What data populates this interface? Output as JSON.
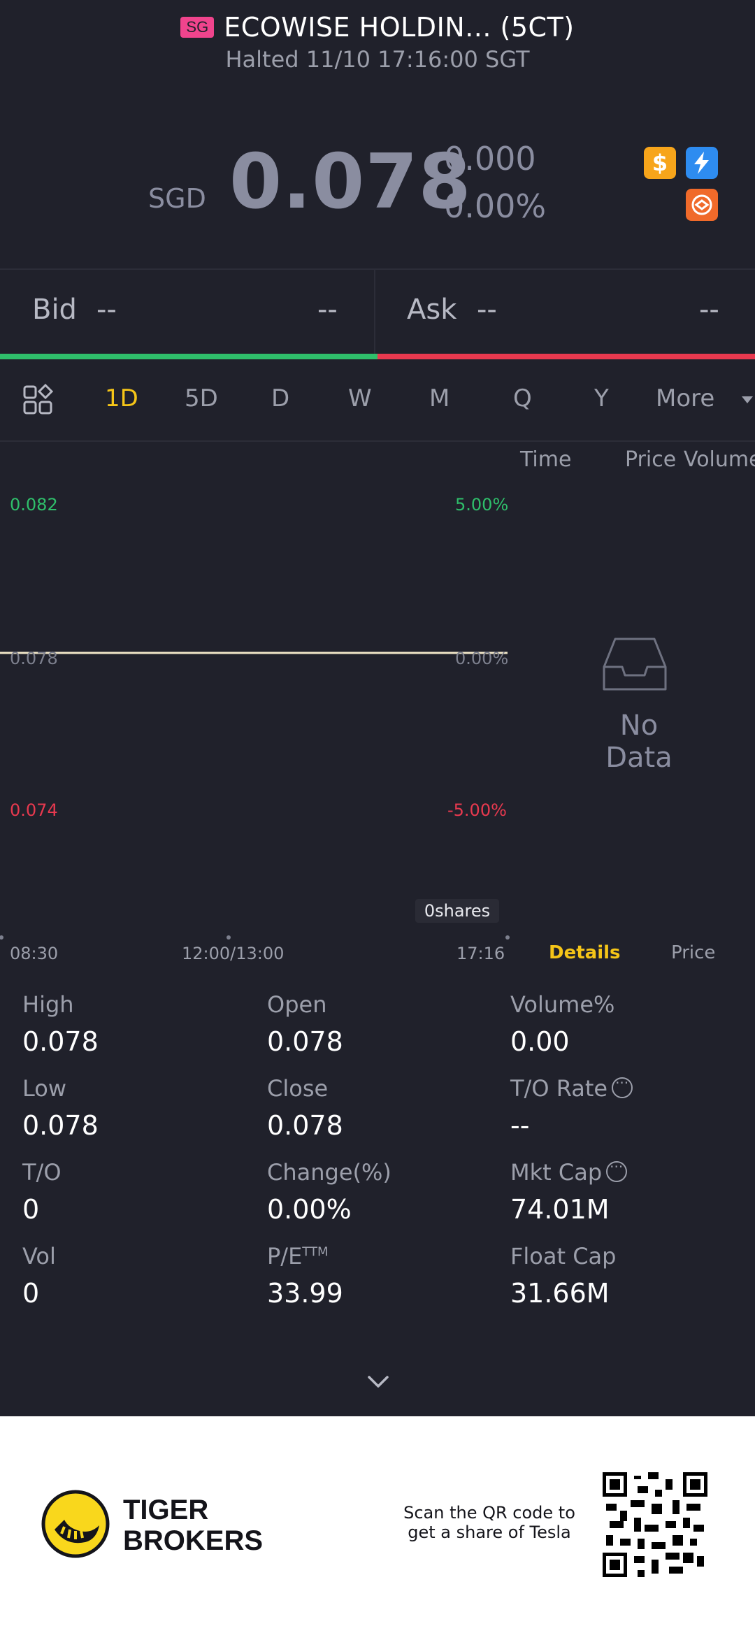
{
  "header": {
    "market_badge": "SG",
    "stock_name": "ECOWISE HOLDIN... (5CT)",
    "status": "Halted 11/10 17:16:00 SGT",
    "currency": "SGD",
    "price": "0.078",
    "change": "0.000",
    "change_pct": "0.00%",
    "icons": [
      "dollar-icon",
      "flash-icon",
      "orange-badge-icon"
    ]
  },
  "quote": {
    "bid_label": "Bid",
    "bid_price": "--",
    "bid_size": "--",
    "ask_label": "Ask",
    "ask_price": "--",
    "ask_size": "--"
  },
  "tabs": {
    "items": [
      "1D",
      "5D",
      "D",
      "W",
      "M",
      "Q",
      "Y",
      "More"
    ],
    "active": "1D"
  },
  "chart": {
    "y_top": "0.082",
    "y_mid": "0.078",
    "y_bottom": "0.074",
    "pct_top": "5.00%",
    "pct_mid": "0.00%",
    "pct_bottom": "-5.00%",
    "x_start": "08:30",
    "x_mid": "12:00/13:00",
    "x_end": "17:16",
    "volume_label": "0shares"
  },
  "trades": {
    "col_time": "Time",
    "col_price": "Price",
    "col_volume": "Volume",
    "no_data": "No Data",
    "tab_details": "Details",
    "tab_price": "Price"
  },
  "stats": {
    "high_label": "High",
    "high": "0.078",
    "open_label": "Open",
    "open": "0.078",
    "volpct_label": "Volume%",
    "volpct": "0.00",
    "low_label": "Low",
    "low": "0.078",
    "close_label": "Close",
    "close": "0.078",
    "torate_label": "T/O Rate",
    "torate": "--",
    "to_label": "T/O",
    "to": "0",
    "changepct_label": "Change(%)",
    "changepct": "0.00%",
    "mktcap_label": "Mkt Cap",
    "mktcap": "74.01M",
    "vol_label": "Vol",
    "vol": "0",
    "pe_label": "P/E",
    "pe_sup": "TTM",
    "pe": "33.99",
    "floatcap_label": "Float Cap",
    "floatcap": "31.66M"
  },
  "footer": {
    "brand_line1": "TIGER",
    "brand_line2": "BROKERS",
    "scan_text": "Scan the QR code to get a share of Tesla"
  },
  "colors": {
    "background": "#20212b",
    "up": "#2fbf6b",
    "down": "#e8394f",
    "accent": "#f5c518"
  }
}
